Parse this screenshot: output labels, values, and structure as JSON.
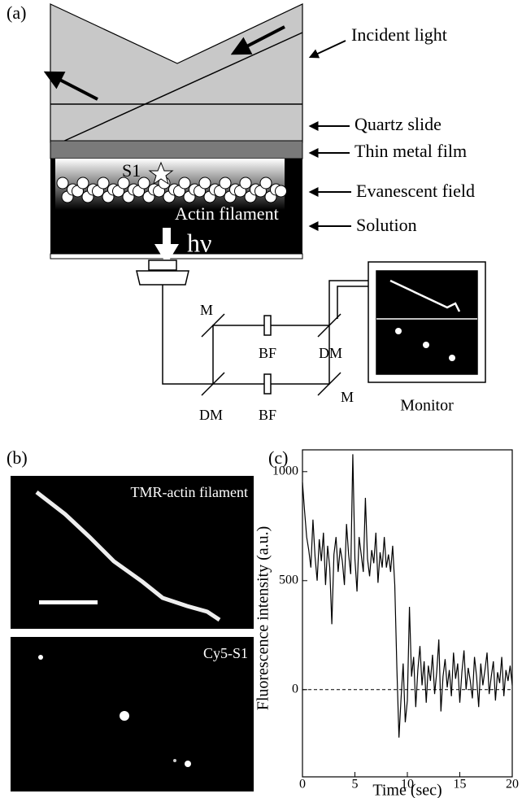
{
  "panel_a": {
    "label": "(a)",
    "incident_light": "Incident light",
    "quartz_slide": "Quartz slide",
    "metal_film": "Thin metal film",
    "evanescent": "Evanescent field",
    "solution": "Solution",
    "s1": "S1",
    "actin": "Actin filament",
    "hv": "hν",
    "monitor": "Monitor",
    "m_top": "M",
    "m_bottom": "M",
    "bf_top": "BF",
    "bf_bottom": "BF",
    "dm_top": "DM",
    "dm_bottom": "DM"
  },
  "panel_b": {
    "label": "(b)",
    "image_top": "TMR-actin filament",
    "image_bottom": "Cy5-S1"
  },
  "chart_data": {
    "type": "line",
    "panel_label": "(c)",
    "xlabel": "Time (sec)",
    "ylabel": "Fluorescence intensity (a.u.)",
    "x": [
      0,
      0.2,
      0.4,
      0.6,
      0.8,
      1,
      1.2,
      1.4,
      1.6,
      1.8,
      2,
      2.2,
      2.4,
      2.6,
      2.8,
      3,
      3.2,
      3.4,
      3.6,
      3.8,
      4,
      4.2,
      4.4,
      4.6,
      4.8,
      5,
      5.2,
      5.4,
      5.6,
      5.8,
      6,
      6.2,
      6.4,
      6.6,
      6.8,
      7,
      7.2,
      7.4,
      7.6,
      7.8,
      8,
      8.2,
      8.4,
      8.6,
      8.8,
      9,
      9.2,
      9.4,
      9.6,
      9.8,
      10,
      10.2,
      10.4,
      10.6,
      10.8,
      11,
      11.2,
      11.4,
      11.6,
      11.8,
      12,
      12.2,
      12.4,
      12.6,
      12.8,
      13,
      13.2,
      13.4,
      13.6,
      13.8,
      14,
      14.2,
      14.4,
      14.6,
      14.8,
      15,
      15.2,
      15.4,
      15.6,
      15.8,
      16,
      16.2,
      16.4,
      16.6,
      16.8,
      17,
      17.2,
      17.4,
      17.6,
      17.8,
      18,
      18.2,
      18.4,
      18.6,
      18.8,
      19,
      19.2,
      19.4,
      19.6,
      19.8,
      20
    ],
    "values": [
      950,
      820,
      700,
      640,
      560,
      780,
      610,
      500,
      690,
      590,
      720,
      480,
      660,
      560,
      300,
      620,
      700,
      540,
      650,
      590,
      480,
      760,
      620,
      530,
      1080,
      600,
      450,
      700,
      620,
      540,
      880,
      600,
      520,
      640,
      580,
      720,
      490,
      630,
      560,
      700,
      560,
      620,
      540,
      660,
      480,
      100,
      -220,
      -40,
      120,
      -150,
      -50,
      380,
      60,
      150,
      -80,
      90,
      200,
      20,
      130,
      -60,
      110,
      40,
      160,
      -20,
      80,
      230,
      -100,
      60,
      140,
      10,
      90,
      -30,
      170,
      50,
      120,
      -60,
      80,
      180,
      0,
      100,
      40,
      -40,
      150,
      60,
      -80,
      120,
      20,
      90,
      170,
      -20,
      60,
      130,
      -50,
      80,
      30,
      150,
      -30,
      90,
      40,
      110,
      20
    ],
    "color": "#000000",
    "xlim": [
      0,
      20
    ],
    "ylim": [
      -400,
      1100
    ],
    "xticks": [
      0,
      5,
      10,
      15,
      20
    ],
    "yticks": [
      0,
      500,
      1000
    ]
  }
}
